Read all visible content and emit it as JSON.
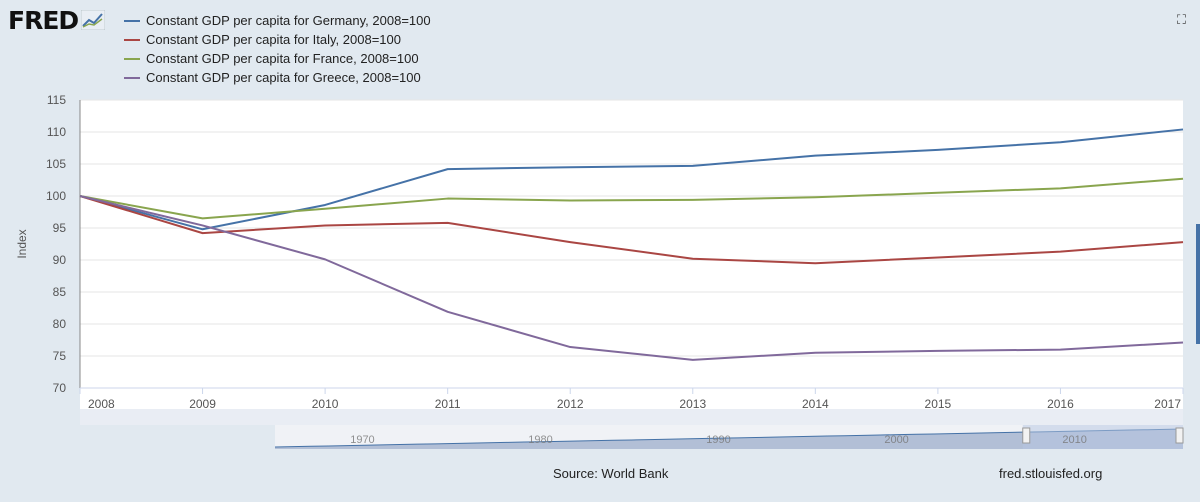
{
  "header": {
    "logo_text": "FRED",
    "logo_icon": "line-chart-icon",
    "expand_icon": "fullscreen-icon",
    "expand_glyph": "⛶"
  },
  "footer": {
    "source": "Source: World Bank",
    "site": "fred.stlouisfed.org"
  },
  "colors": {
    "background": "#e1e9f0",
    "plot_background": "#ffffff",
    "navigator_fill": "#7f95bb",
    "navigator_selection": "#b5c6e2"
  },
  "navigator": {
    "labels": [
      "1970",
      "1980",
      "1990",
      "2000",
      "2010"
    ],
    "range": [
      1966,
      2017
    ],
    "selected": [
      2008,
      2017
    ]
  },
  "chart_data": {
    "type": "line",
    "title": "",
    "xlabel": "",
    "ylabel": "Index",
    "x": [
      2008,
      2009,
      2010,
      2011,
      2012,
      2013,
      2014,
      2015,
      2016,
      2017
    ],
    "xlim": [
      2008,
      2017
    ],
    "ylim": [
      70,
      115
    ],
    "yticks": [
      70,
      75,
      80,
      85,
      90,
      95,
      100,
      105,
      110,
      115
    ],
    "grid": true,
    "legend": "top-left",
    "series": [
      {
        "name": "Constant GDP per capita for Germany, 2008=100",
        "color": "#4572a7",
        "values": [
          100,
          94.8,
          98.6,
          104.2,
          104.5,
          104.7,
          106.3,
          107.2,
          108.4,
          110.4
        ]
      },
      {
        "name": "Constant GDP per capita for Italy, 2008=100",
        "color": "#aa4643",
        "values": [
          100,
          94.2,
          95.4,
          95.8,
          92.8,
          90.2,
          89.5,
          90.4,
          91.3,
          92.8
        ]
      },
      {
        "name": "Constant GDP per capita for France, 2008=100",
        "color": "#89a54e",
        "values": [
          100,
          96.5,
          98.0,
          99.6,
          99.3,
          99.4,
          99.8,
          100.5,
          101.2,
          102.7
        ]
      },
      {
        "name": "Constant GDP per capita for Greece, 2008=100",
        "color": "#80699b",
        "values": [
          100,
          95.4,
          90.1,
          81.9,
          76.4,
          74.4,
          75.5,
          75.8,
          76.0,
          77.1
        ]
      }
    ]
  }
}
